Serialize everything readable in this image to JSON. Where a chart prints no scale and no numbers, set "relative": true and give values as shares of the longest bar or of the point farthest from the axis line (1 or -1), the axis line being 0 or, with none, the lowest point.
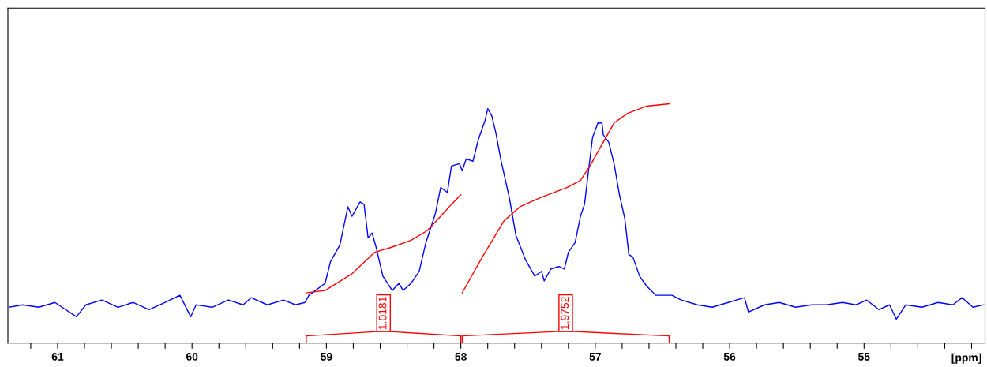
{
  "chart_data": {
    "type": "line",
    "relative": true,
    "xlabel": "[ppm]",
    "xlim": [
      61.37,
      54.1
    ],
    "xticks": [
      {
        "value": 61.2,
        "label": null
      },
      61,
      {
        "value": 60.8,
        "label": null
      },
      {
        "value": 60.6,
        "label": null
      },
      {
        "value": 60.4,
        "label": null
      },
      {
        "value": 60.2,
        "label": null
      },
      60,
      {
        "value": 59.8,
        "label": null
      },
      {
        "value": 59.6,
        "label": null
      },
      {
        "value": 59.4,
        "label": null
      },
      {
        "value": 59.2,
        "label": null
      },
      59,
      {
        "value": 58.8,
        "label": null
      },
      {
        "value": 58.6,
        "label": null
      },
      {
        "value": 58.4,
        "label": null
      },
      {
        "value": 58.2,
        "label": null
      },
      58,
      {
        "value": 57.8,
        "label": null
      },
      {
        "value": 57.6,
        "label": null
      },
      {
        "value": 57.4,
        "label": null
      },
      {
        "value": 57.2,
        "label": null
      },
      57,
      {
        "value": 56.8,
        "label": null
      },
      {
        "value": 56.6,
        "label": null
      },
      {
        "value": 56.4,
        "label": null
      },
      {
        "value": 56.2,
        "label": null
      },
      56,
      {
        "value": 55.8,
        "label": null
      },
      {
        "value": 55.6,
        "label": null
      },
      {
        "value": 55.4,
        "label": null
      },
      {
        "value": 55.2,
        "label": null
      },
      55,
      {
        "value": 54.8,
        "label": null
      },
      {
        "value": 54.6,
        "label": null
      },
      {
        "value": 54.4,
        "label": null
      },
      {
        "value": 54.2,
        "label": null
      }
    ],
    "tick_labels": "x",
    "grid": false,
    "marker": "none",
    "line_style": "solid",
    "series": [
      {
        "color": "#0000ff",
        "x": [
          61.36,
          61.26,
          61.14,
          61.02,
          60.86,
          60.79,
          60.67,
          60.55,
          60.44,
          60.32,
          60.2,
          60.09,
          60.01,
          59.97,
          59.85,
          59.73,
          59.62,
          59.56,
          59.44,
          59.32,
          59.23,
          59.16,
          59.13,
          59.01,
          58.97,
          58.9,
          58.84,
          58.81,
          58.75,
          58.72,
          58.69,
          58.66,
          58.63,
          58.58,
          58.51,
          58.46,
          58.43,
          58.37,
          58.31,
          58.26,
          58.19,
          58.15,
          58.1,
          58.07,
          58.01,
          57.99,
          57.96,
          57.91,
          57.87,
          57.82,
          57.8,
          57.77,
          57.74,
          57.7,
          57.64,
          57.59,
          57.52,
          57.45,
          57.4,
          57.38,
          57.33,
          57.27,
          57.23,
          57.2,
          57.15,
          57.11,
          57.08,
          57.05,
          57.02,
          56.98,
          56.95,
          56.94,
          56.9,
          56.86,
          56.82,
          56.78,
          56.75,
          56.72,
          56.67,
          56.62,
          56.55,
          56.43,
          56.36,
          56.24,
          56.13,
          56.01,
          55.89,
          55.86,
          55.74,
          55.63,
          55.51,
          55.39,
          55.28,
          55.16,
          55.06,
          54.98,
          54.89,
          54.81,
          54.76,
          54.69,
          54.57,
          54.45,
          54.34,
          54.27,
          54.19,
          54.11
        ],
        "values": [
          0.15,
          0.16,
          0.15,
          0.17,
          0.11,
          0.16,
          0.18,
          0.15,
          0.17,
          0.14,
          0.17,
          0.2,
          0.11,
          0.16,
          0.15,
          0.18,
          0.16,
          0.19,
          0.16,
          0.18,
          0.16,
          0.17,
          0.2,
          0.25,
          0.34,
          0.41,
          0.57,
          0.53,
          0.59,
          0.58,
          0.44,
          0.46,
          0.4,
          0.28,
          0.22,
          0.25,
          0.22,
          0.25,
          0.3,
          0.42,
          0.54,
          0.65,
          0.63,
          0.74,
          0.75,
          0.72,
          0.77,
          0.76,
          0.85,
          0.93,
          0.98,
          0.95,
          0.88,
          0.76,
          0.61,
          0.45,
          0.35,
          0.28,
          0.3,
          0.26,
          0.31,
          0.32,
          0.31,
          0.38,
          0.42,
          0.53,
          0.58,
          0.72,
          0.86,
          0.92,
          0.92,
          0.87,
          0.84,
          0.75,
          0.62,
          0.52,
          0.37,
          0.36,
          0.28,
          0.24,
          0.2,
          0.2,
          0.18,
          0.16,
          0.15,
          0.17,
          0.19,
          0.13,
          0.16,
          0.17,
          0.15,
          0.16,
          0.16,
          0.17,
          0.16,
          0.18,
          0.14,
          0.16,
          0.1,
          0.16,
          0.15,
          0.17,
          0.16,
          0.19,
          0.15,
          0.16
        ]
      },
      {
        "color": "#ff0000",
        "x": [
          59.15,
          59.01,
          58.81,
          58.64,
          58.52,
          58.37,
          58.25,
          58.15,
          58.07,
          58.0
        ],
        "values": [
          0.21,
          0.22,
          0.29,
          0.38,
          0.4,
          0.43,
          0.47,
          0.53,
          0.58,
          0.62
        ]
      },
      {
        "color": "#ff0000",
        "x": [
          57.99,
          57.84,
          57.68,
          57.56,
          57.4,
          57.21,
          57.11,
          57.04,
          56.96,
          56.86,
          56.76,
          56.62,
          56.45
        ],
        "values": [
          0.21,
          0.36,
          0.51,
          0.57,
          0.61,
          0.65,
          0.68,
          0.74,
          0.82,
          0.92,
          0.96,
          0.99,
          1.0
        ]
      }
    ],
    "annotations": [
      "1.0181",
      "1.9752"
    ]
  }
}
